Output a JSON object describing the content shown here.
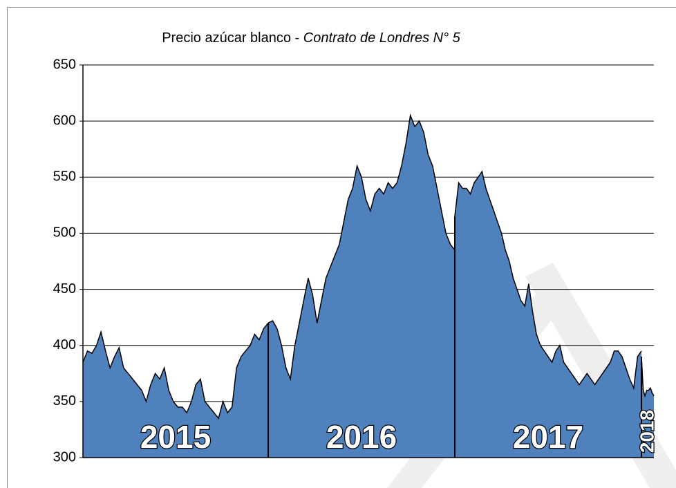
{
  "chart_data": {
    "type": "area",
    "title": "Precio azúcar blanco - ",
    "title_italic": "Contrato de Londres N° 5",
    "color": "#4f81bd",
    "ylim": [
      300,
      650
    ],
    "yticks": [
      300,
      350,
      400,
      450,
      500,
      550,
      600,
      650
    ],
    "grid": true,
    "segments": [
      {
        "label": "2015",
        "values": [
          385,
          395,
          393,
          400,
          412,
          395,
          380,
          390,
          398,
          380,
          375,
          370,
          365,
          360,
          350,
          365,
          375,
          370,
          380,
          360,
          350,
          345,
          345,
          340,
          350,
          365,
          370,
          350,
          345,
          340,
          335,
          350,
          340,
          345,
          380,
          390,
          395,
          400,
          410,
          405,
          415,
          420
        ]
      },
      {
        "label": "2016",
        "values": [
          420,
          422,
          415,
          400,
          380,
          370,
          400,
          420,
          440,
          460,
          445,
          420,
          440,
          460,
          470,
          480,
          490,
          510,
          530,
          540,
          560,
          550,
          530,
          520,
          535,
          540,
          535,
          545,
          540,
          545,
          560,
          580,
          605,
          595,
          600,
          590,
          570,
          560,
          540,
          520,
          500,
          490,
          485
        ]
      },
      {
        "label": "2017",
        "values": [
          515,
          545,
          540,
          540,
          535,
          545,
          550,
          555,
          540,
          530,
          520,
          510,
          500,
          485,
          475,
          460,
          450,
          440,
          435,
          455,
          430,
          410,
          400,
          395,
          390,
          385,
          395,
          400,
          385,
          380,
          375,
          370,
          365,
          370,
          375,
          370,
          365,
          370,
          375,
          380,
          385,
          395,
          395,
          390,
          380,
          370,
          362,
          390,
          395
        ]
      },
      {
        "label": "2018",
        "values": [
          390,
          360,
          355,
          360,
          360,
          362,
          358,
          355
        ]
      }
    ]
  }
}
